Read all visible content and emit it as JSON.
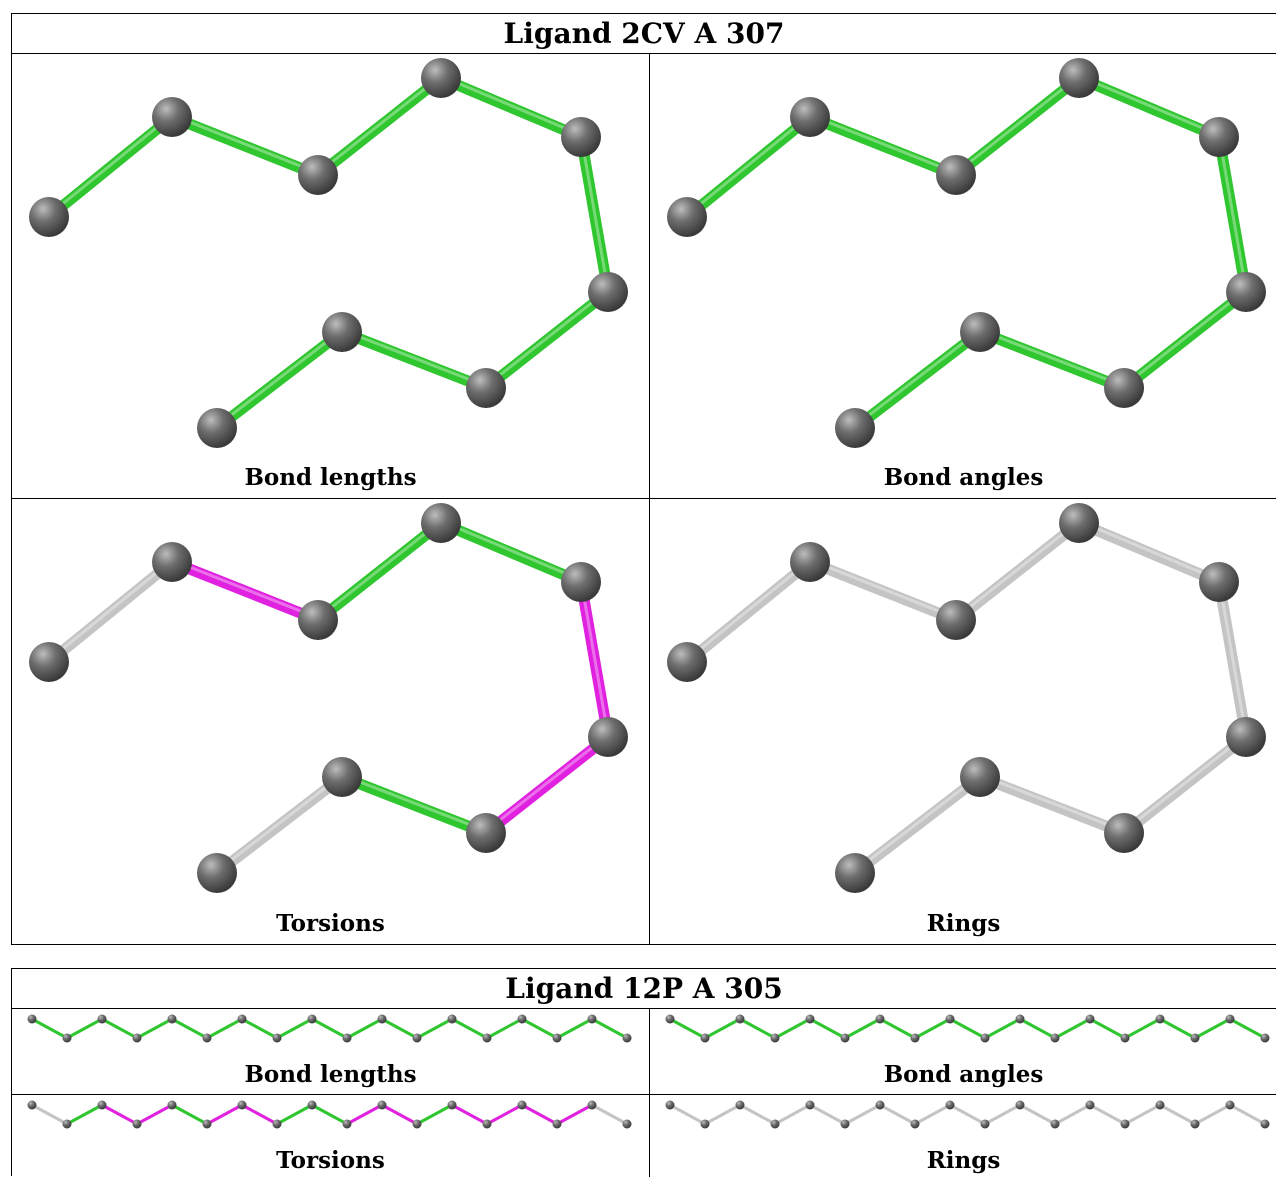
{
  "colors": {
    "atom": "#6e6e6e",
    "green": "#2fc62f",
    "magenta": "#e021e0",
    "grey": "#c4c4c4"
  },
  "ligands": [
    {
      "title": "Ligand 2CV A 307",
      "molecule": "2cv",
      "cells": [
        {
          "caption": "Bond lengths",
          "bond_colors": [
            "green",
            "green",
            "green",
            "green",
            "green",
            "green",
            "green",
            "green",
            "green",
            "green"
          ]
        },
        {
          "caption": "Bond angles",
          "bond_colors": [
            "green",
            "green",
            "green",
            "green",
            "green",
            "green",
            "green",
            "green",
            "green",
            "green"
          ]
        },
        {
          "caption": "Torsions",
          "bond_colors": [
            "grey",
            "magenta",
            "green",
            "green",
            "magenta",
            "magenta",
            "green",
            "grey",
            "grey",
            "grey"
          ]
        },
        {
          "caption": "Rings",
          "bond_colors": [
            "grey",
            "grey",
            "grey",
            "grey",
            "grey",
            "grey",
            "grey",
            "grey",
            "grey",
            "grey"
          ]
        }
      ]
    },
    {
      "title": "Ligand 12P A 305",
      "molecule": "12p",
      "cells": [
        {
          "caption": "Bond lengths",
          "bond_colors": [
            "green",
            "green",
            "green",
            "green",
            "green",
            "green",
            "green",
            "green",
            "green",
            "green",
            "green",
            "green",
            "green",
            "green",
            "green",
            "green",
            "green",
            "green"
          ]
        },
        {
          "caption": "Bond angles",
          "bond_colors": [
            "green",
            "green",
            "green",
            "green",
            "green",
            "green",
            "green",
            "green",
            "green",
            "green",
            "green",
            "green",
            "green",
            "green",
            "green",
            "green",
            "green",
            "green"
          ]
        },
        {
          "caption": "Torsions",
          "bond_colors": [
            "grey",
            "green",
            "magenta",
            "magenta",
            "green",
            "magenta",
            "magenta",
            "green",
            "green",
            "magenta",
            "magenta",
            "green",
            "magenta",
            "magenta",
            "magenta",
            "magenta",
            "grey",
            "grey"
          ]
        },
        {
          "caption": "Rings",
          "bond_colors": [
            "grey",
            "grey",
            "grey",
            "grey",
            "grey",
            "grey",
            "grey",
            "grey",
            "grey",
            "grey",
            "grey",
            "grey",
            "grey",
            "grey",
            "grey",
            "grey",
            "grey",
            "grey"
          ]
        }
      ]
    }
  ]
}
